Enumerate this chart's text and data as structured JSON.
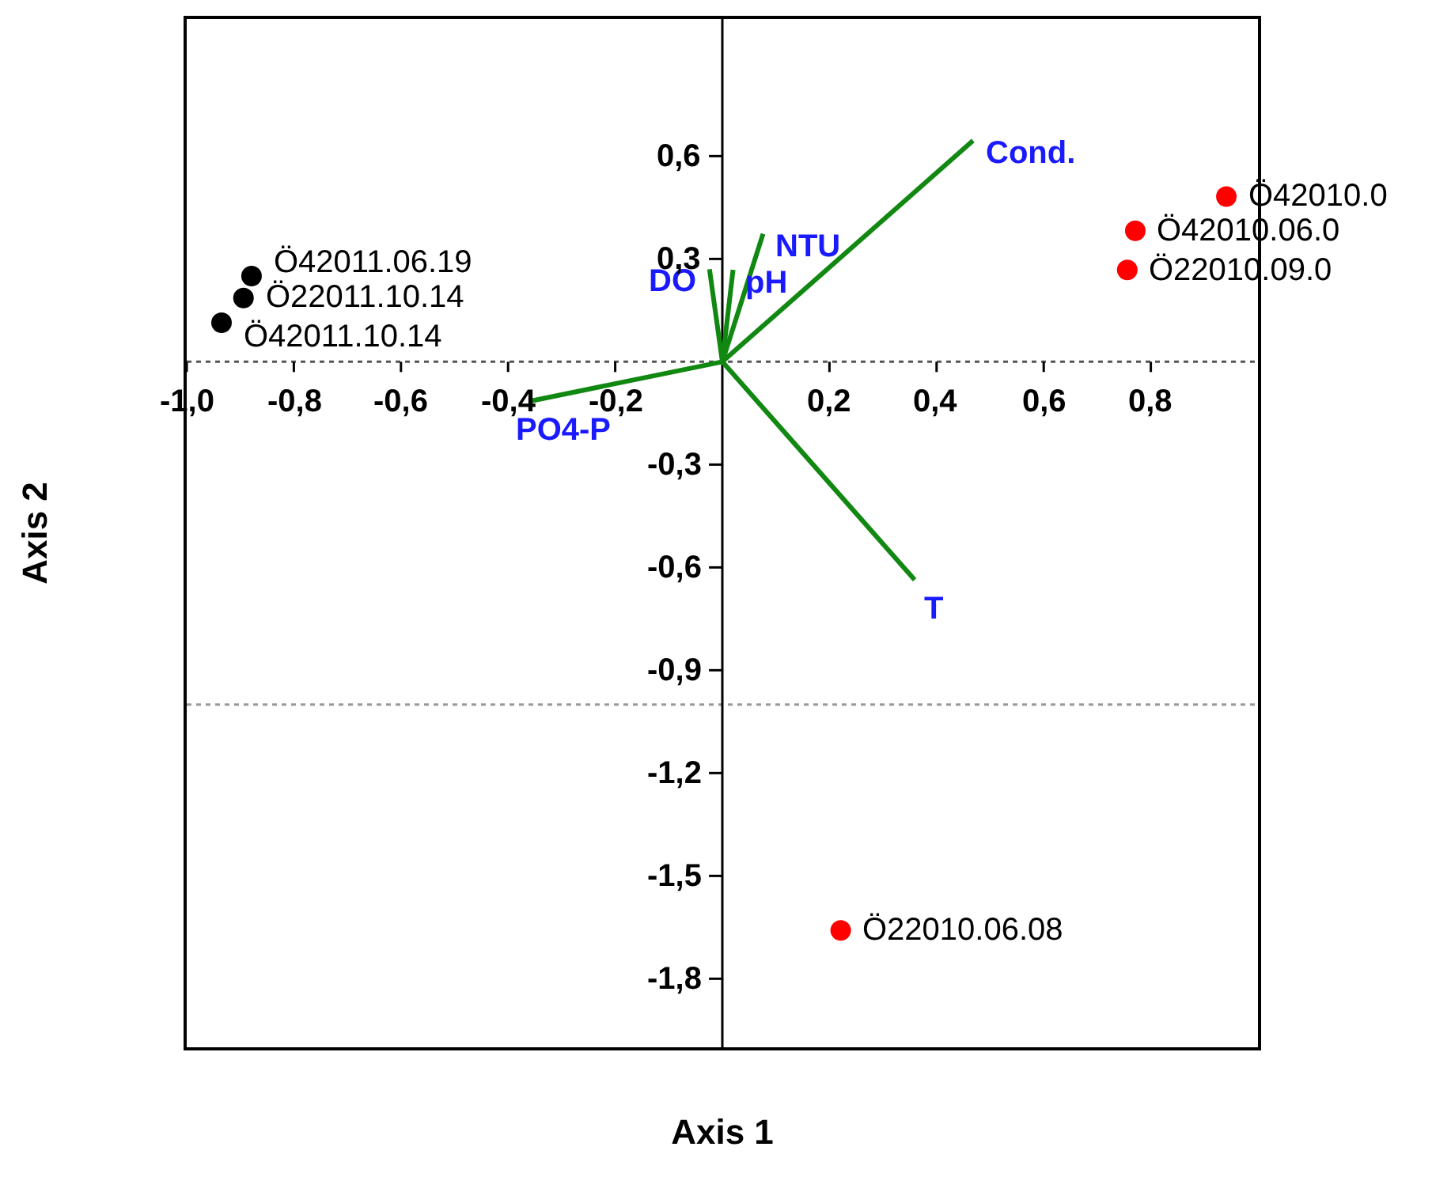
{
  "chart_data": {
    "type": "scatter",
    "xlabel": "Axis 1",
    "ylabel": "Axis 2",
    "xlim": [
      -1.0,
      1.0
    ],
    "ylim": [
      -2.0,
      1.0
    ],
    "xticks": [
      {
        "value": -1.0,
        "label": "-1,0"
      },
      {
        "value": -0.8,
        "label": "-0,8"
      },
      {
        "value": -0.6,
        "label": "-0,6"
      },
      {
        "value": -0.4,
        "label": "-0,4"
      },
      {
        "value": -0.2,
        "label": "-0,2"
      },
      {
        "value": 0.2,
        "label": "0,2"
      },
      {
        "value": 0.4,
        "label": "0,4"
      },
      {
        "value": 0.6,
        "label": "0,6"
      },
      {
        "value": 0.8,
        "label": "0,8"
      }
    ],
    "yticks": [
      {
        "value": 0.6,
        "label": "0,6"
      },
      {
        "value": 0.3,
        "label": "0,3"
      },
      {
        "value": -0.3,
        "label": "-0,3"
      },
      {
        "value": -0.6,
        "label": "-0,6"
      },
      {
        "value": -0.9,
        "label": "-0,9"
      },
      {
        "value": -1.2,
        "label": "-1,2"
      },
      {
        "value": -1.5,
        "label": "-1,5"
      },
      {
        "value": -1.8,
        "label": "-1,8"
      }
    ],
    "grid": false,
    "legend": false,
    "marker": "circle",
    "series": [
      {
        "color": "#000000",
        "x": [
          -0.935,
          -0.894,
          -0.879
        ],
        "values": [
          0.114,
          0.186,
          0.25
        ]
      },
      {
        "color": "#ff0000",
        "x": [
          0.941,
          0.771,
          0.756,
          0.221
        ],
        "values": [
          0.482,
          0.382,
          0.268,
          -1.659
        ]
      },
      {
        "type": "line",
        "marker": "none",
        "name": "Cond.",
        "color": "#118811",
        "x": [
          0,
          0.468
        ],
        "values": [
          0,
          0.645
        ]
      },
      {
        "type": "line",
        "marker": "none",
        "name": "NTU",
        "color": "#118811",
        "x": [
          0,
          0.076
        ],
        "values": [
          0,
          0.373
        ]
      },
      {
        "type": "line",
        "marker": "none",
        "name": "DO",
        "color": "#118811",
        "x": [
          0,
          -0.024
        ],
        "values": [
          0,
          0.27
        ]
      },
      {
        "type": "line",
        "marker": "none",
        "name": "pH",
        "color": "#118811",
        "x": [
          0,
          0.02
        ],
        "values": [
          0,
          0.268
        ]
      },
      {
        "type": "line",
        "marker": "none",
        "name": "PO4-P",
        "color": "#118811",
        "x": [
          0,
          -0.356
        ],
        "values": [
          0,
          -0.114
        ]
      },
      {
        "type": "line",
        "marker": "none",
        "name": "T",
        "color": "#118811",
        "x": [
          0,
          0.359
        ],
        "values": [
          0,
          -0.636
        ]
      }
    ],
    "ref_lines": [
      {
        "axis": "y",
        "value": 0,
        "color": "#555555",
        "line_style": "dotted"
      },
      {
        "axis": "y",
        "value": -1.0,
        "color": "#999999",
        "line_style": "dotted"
      }
    ],
    "annotations": [
      {
        "text": "Ö42011.06.19",
        "x": -0.879,
        "y": 0.25
      },
      {
        "text": "Ö22011.10.14",
        "x": -0.894,
        "y": 0.186
      },
      {
        "text": "Ö42011.10.14",
        "x": -0.935,
        "y": 0.114
      },
      {
        "text": "Ö42010.0",
        "x": 0.941,
        "y": 0.482
      },
      {
        "text": "Ö42010.06.0",
        "x": 0.771,
        "y": 0.382
      },
      {
        "text": "Ö22010.09.0",
        "x": 0.756,
        "y": 0.268
      },
      {
        "text": "Ö22010.06.08",
        "x": 0.221,
        "y": -1.659
      }
    ]
  }
}
